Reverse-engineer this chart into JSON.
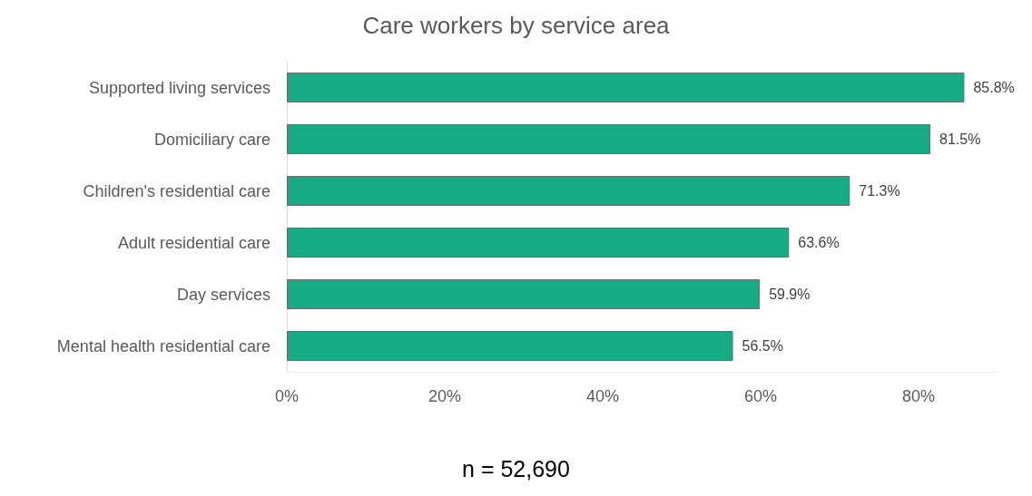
{
  "chart_data": {
    "type": "bar",
    "orientation": "horizontal",
    "title": "Care workers by service area",
    "categories": [
      "Supported living services",
      "Domiciliary care",
      "Children's residential care",
      "Adult residential care",
      "Day services",
      "Mental health residential care"
    ],
    "values": [
      85.8,
      81.5,
      71.3,
      63.6,
      59.9,
      56.5
    ],
    "value_labels": [
      "85.8%",
      "81.5%",
      "71.3%",
      "63.6%",
      "59.9%",
      "56.5%"
    ],
    "color": "#17ab85",
    "xlim": [
      0,
      90
    ],
    "xticks": [
      {
        "value": 0,
        "label": "0%"
      },
      {
        "value": 20,
        "label": "20%"
      },
      {
        "value": 40,
        "label": "40%"
      },
      {
        "value": 60,
        "label": "60%"
      },
      {
        "value": 80,
        "label": "80%"
      }
    ],
    "grid": false,
    "annotations": [
      "n = 52,690"
    ]
  }
}
